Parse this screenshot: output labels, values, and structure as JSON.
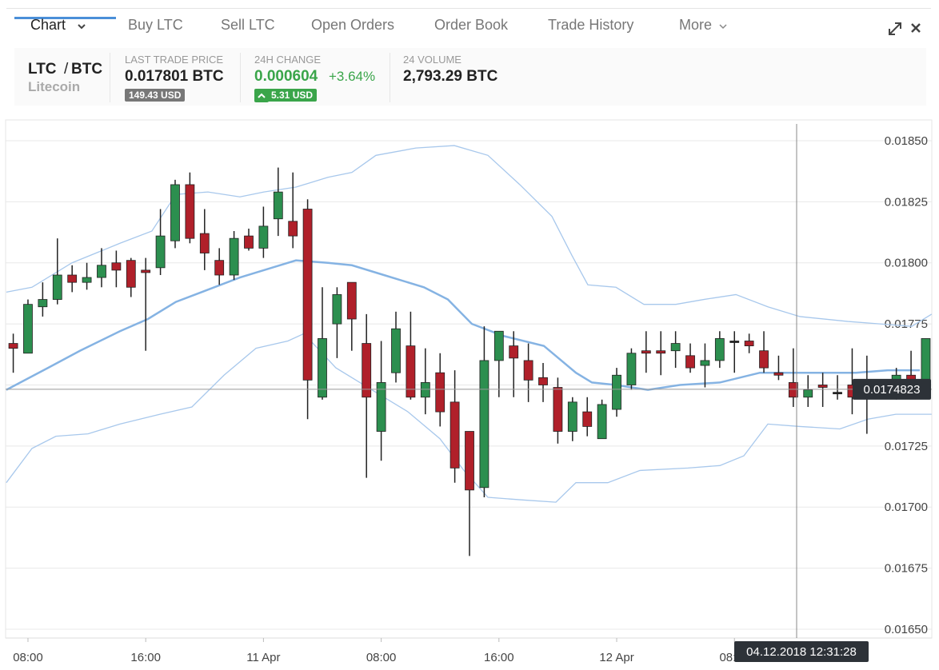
{
  "tabs": [
    "Chart",
    "Buy LTC",
    "Sell LTC",
    "Open Orders",
    "Order Book",
    "Trade History",
    "More"
  ],
  "ticker": {
    "pair_base": "LTC",
    "pair_sep": "/",
    "pair_quote": "BTC",
    "name": "Litecoin",
    "last_price_label": "LAST TRADE PRICE",
    "last_price": "0.017801 BTC",
    "last_price_usd": "149.43 USD",
    "change_label": "24H CHANGE",
    "change": "0.000604",
    "change_pct": "+3.64%",
    "change_usd": "5.31 USD",
    "volume_label": "24 VOLUME",
    "volume": "2,793.29 BTC"
  },
  "chart_data": {
    "type": "candlestick",
    "up_color": "#2c8f4f",
    "down_color": "#b0202a",
    "flat_color": "#222222",
    "x": [
      7,
      8,
      9,
      10,
      11,
      12,
      13,
      14,
      15,
      16,
      17,
      18,
      19,
      20,
      21,
      22,
      23,
      24,
      25,
      26,
      27,
      28,
      29,
      30,
      31,
      32,
      33,
      34,
      35,
      36,
      37,
      38,
      39,
      40,
      41,
      42,
      43,
      44,
      45,
      46,
      47,
      48,
      49,
      50,
      51,
      52,
      53,
      54,
      55,
      56,
      57,
      58,
      59,
      60,
      61,
      62,
      63,
      64,
      65,
      66,
      67,
      68,
      69
    ],
    "open": [
      0.01767,
      0.01763,
      0.01782,
      0.01785,
      0.01795,
      0.01792,
      0.01794,
      0.018,
      0.01801,
      0.01797,
      0.01798,
      0.01809,
      0.01832,
      0.01812,
      0.01801,
      0.01795,
      0.01811,
      0.01806,
      0.01818,
      0.01817,
      0.01822,
      0.01745,
      0.01775,
      0.01792,
      0.01767,
      0.01731,
      0.01755,
      0.01766,
      0.01745,
      0.01755,
      0.01743,
      0.01731,
      0.01708,
      0.0176,
      0.01766,
      0.0176,
      0.01753,
      0.01749,
      0.01731,
      0.01739,
      0.01728,
      0.0174,
      0.0175,
      0.01764,
      0.01764,
      0.01764,
      0.01762,
      0.01758,
      0.0176,
      0.01768,
      0.01768,
      0.01764,
      0.01755,
      0.01751,
      0.01745,
      0.0175,
      0.01747,
      0.0175,
      0.01748,
      0.01748,
      0.01745,
      0.01754,
      0.01752
    ],
    "high": [
      0.01771,
      0.01785,
      0.01792,
      0.0181,
      0.01799,
      0.018,
      0.01806,
      0.01805,
      0.01802,
      0.01802,
      0.01822,
      0.01834,
      0.01837,
      0.01822,
      0.01806,
      0.01813,
      0.01814,
      0.01823,
      0.01839,
      0.01837,
      0.01826,
      0.0179,
      0.0179,
      0.01792,
      0.01779,
      0.01768,
      0.0178,
      0.0178,
      0.01765,
      0.01763,
      0.01756,
      0.01731,
      0.01774,
      0.01772,
      0.01772,
      0.01767,
      0.01759,
      0.01753,
      0.01745,
      0.01745,
      0.01744,
      0.01757,
      0.01765,
      0.01772,
      0.01772,
      0.01772,
      0.01767,
      0.01767,
      0.01772,
      0.01772,
      0.01771,
      0.01772,
      0.01762,
      0.01765,
      0.01754,
      0.01755,
      0.01754,
      0.01765,
      0.01762,
      0.01752,
      0.01757,
      0.01764,
      0.01769
    ],
    "low": [
      0.01755,
      0.01763,
      0.01778,
      0.01783,
      0.01788,
      0.01789,
      0.0179,
      0.0179,
      0.01786,
      0.01764,
      0.01795,
      0.01806,
      0.01808,
      0.01797,
      0.01791,
      0.01793,
      0.01805,
      0.01802,
      0.01811,
      0.01806,
      0.01736,
      0.01744,
      0.01761,
      0.01764,
      0.01712,
      0.01719,
      0.01751,
      0.01744,
      0.01738,
      0.01733,
      0.0171,
      0.0168,
      0.01704,
      0.01745,
      0.01745,
      0.01743,
      0.01743,
      0.01726,
      0.01727,
      0.01729,
      0.01728,
      0.01737,
      0.01748,
      0.01755,
      0.01754,
      0.01757,
      0.01755,
      0.01749,
      0.01757,
      0.01755,
      0.01763,
      0.01755,
      0.01752,
      0.01741,
      0.01741,
      0.01741,
      0.01744,
      0.01738,
      0.0173,
      0.01745,
      0.01744,
      0.01745,
      0.0175
    ],
    "close": [
      0.01765,
      0.01783,
      0.01785,
      0.01795,
      0.01792,
      0.01794,
      0.01799,
      0.01797,
      0.0179,
      0.01796,
      0.01811,
      0.01832,
      0.0181,
      0.01804,
      0.01795,
      0.0181,
      0.01806,
      0.01815,
      0.01829,
      0.01811,
      0.01752,
      0.01769,
      0.01787,
      0.01777,
      0.01745,
      0.01751,
      0.01773,
      0.01745,
      0.01751,
      0.01739,
      0.01716,
      0.01707,
      0.0176,
      0.01772,
      0.01761,
      0.01752,
      0.0175,
      0.01731,
      0.01743,
      0.01733,
      0.01742,
      0.01754,
      0.01763,
      0.01763,
      0.01763,
      0.01767,
      0.01757,
      0.0176,
      0.01769,
      0.01768,
      0.01766,
      0.01757,
      0.01754,
      0.01745,
      0.01748,
      0.01749,
      0.01747,
      0.01745,
      0.01748,
      0.01748,
      0.01754,
      0.01748,
      0.01769
    ],
    "lines": [
      {
        "color": "#a8c8ec",
        "x": [
          6.53,
          8.27,
          10.99,
          14.25,
          16.42,
          18.05,
          20.23,
          22.4,
          24.03,
          26.21,
          28.38,
          30.01,
          31.64,
          34.36,
          36.97,
          39.25,
          41.42,
          43.6,
          44.96,
          46.04,
          47.95,
          49.85,
          52.02,
          53.92,
          56.1,
          58.27,
          60.45,
          63.71,
          65.88,
          68.05,
          69.4
        ],
        "values": [
          0.01788,
          0.0179,
          0.018,
          0.01808,
          0.01813,
          0.01828,
          0.01829,
          0.01827,
          0.01829,
          0.01831,
          0.01835,
          0.01837,
          0.01844,
          0.01847,
          0.01848,
          0.01844,
          0.01832,
          0.01819,
          0.01803,
          0.01791,
          0.0179,
          0.01783,
          0.01783,
          0.01785,
          0.01787,
          0.01782,
          0.01778,
          0.01776,
          0.01775,
          0.01774,
          0.01779
        ]
      },
      {
        "color": "#85b3e3",
        "x": [
          6.53,
          9.36,
          11.53,
          14.25,
          16.15,
          18.05,
          20.23,
          22.4,
          24.58,
          26.21,
          28.38,
          30.01,
          32.18,
          34.9,
          36.53,
          38.16,
          40.34,
          43.05,
          45.23,
          46.32,
          47.95,
          50.12,
          52.29,
          55.01,
          57.73,
          59.9,
          62.08,
          64.25,
          66.42,
          68.6
        ],
        "values": [
          0.01748,
          0.01757,
          0.01764,
          0.01772,
          0.01777,
          0.01784,
          0.01789,
          0.01794,
          0.01798,
          0.01801,
          0.018,
          0.01799,
          0.01795,
          0.0179,
          0.01785,
          0.01775,
          0.0177,
          0.01766,
          0.01755,
          0.01751,
          0.0175,
          0.01748,
          0.0175,
          0.01751,
          0.01755,
          0.01755,
          0.01755,
          0.01755,
          0.01756,
          0.01756
        ]
      },
      {
        "color": "#a8c8ec",
        "x": [
          6.53,
          8.27,
          9.9,
          12.08,
          14.25,
          16.97,
          19.14,
          21.32,
          23.49,
          25.66,
          26.75,
          28.92,
          31.64,
          33.82,
          35.99,
          37.62,
          39.25,
          41.42,
          43.87,
          45.23,
          47.4,
          49.58,
          52.84,
          55.01,
          56.64,
          58.27,
          60.45,
          63.16,
          65.07,
          66.97,
          69.4
        ],
        "values": [
          0.0171,
          0.01724,
          0.01729,
          0.0173,
          0.01734,
          0.01738,
          0.01741,
          0.01754,
          0.01765,
          0.01768,
          0.01771,
          0.01757,
          0.01747,
          0.01739,
          0.01728,
          0.01715,
          0.01704,
          0.01703,
          0.01702,
          0.0171,
          0.0171,
          0.01715,
          0.01716,
          0.01717,
          0.01721,
          0.01734,
          0.01733,
          0.01732,
          0.01736,
          0.01738,
          0.01738
        ]
      }
    ],
    "xlim": [
      6.48,
      69.41
    ],
    "ylim": [
      0.016464,
      0.018585
    ],
    "xticks": [
      {
        "value": 8,
        "label": "08:00"
      },
      {
        "value": 16,
        "label": "16:00"
      },
      {
        "value": 24,
        "label": "11 Apr"
      },
      {
        "value": 32,
        "label": "08:00"
      },
      {
        "value": 40,
        "label": "16:00"
      },
      {
        "value": 48,
        "label": "12 Apr"
      },
      {
        "value": 56,
        "label": "08:00"
      }
    ],
    "yticks": [
      {
        "value": 0.0165,
        "label": "0.01650"
      },
      {
        "value": 0.01675,
        "label": "0.01675"
      },
      {
        "value": 0.017,
        "label": "0.01700"
      },
      {
        "value": 0.01725,
        "label": "0.01725"
      },
      {
        "value": 0.0175,
        "label": "0.01750"
      },
      {
        "value": 0.01775,
        "label": "0.01775"
      },
      {
        "value": 0.018,
        "label": "0.01800"
      },
      {
        "value": 0.01825,
        "label": "0.01825"
      },
      {
        "value": 0.0185,
        "label": "0.01850"
      }
    ],
    "grid": true,
    "current_price": {
      "value": 0.0174823,
      "label": "0.0174823"
    },
    "crosshair_time": "04.12.2018 12:31:28"
  }
}
